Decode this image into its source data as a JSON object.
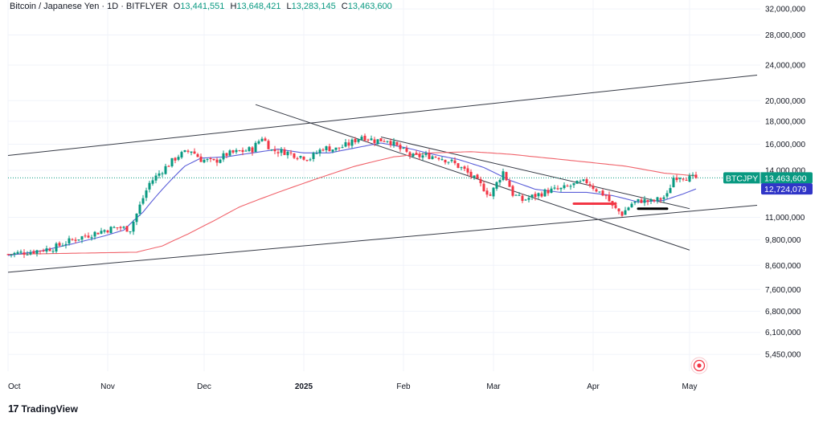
{
  "header": {
    "symbol": "Bitcoin / Japanese Yen · 1D · BITFLYER",
    "o_label": "O",
    "o_value": "13,441,551",
    "h_label": "H",
    "h_value": "13,648,421",
    "l_label": "L",
    "l_value": "13,283,145",
    "c_label": "C",
    "c_value": "13,463,600"
  },
  "brand": {
    "logo": "17",
    "name": "TradingView"
  },
  "colors": {
    "up": "#089981",
    "down": "#f23645",
    "ma_fast": "#5b5fd9",
    "ma_slow": "#f0636b",
    "line": "#363a45",
    "grid": "#f0f3fa",
    "badge_price": "#089981",
    "badge_ma": "#3035c7"
  },
  "chart_data": {
    "type": "candlestick",
    "title": "Bitcoin / Japanese Yen · 1D · BITFLYER",
    "x_labels": [
      {
        "label": "Oct",
        "index": 0,
        "bold": false
      },
      {
        "label": "Nov",
        "index": 31,
        "bold": false
      },
      {
        "label": "Dec",
        "index": 61,
        "bold": false
      },
      {
        "label": "2025",
        "index": 92,
        "bold": true
      },
      {
        "label": "Feb",
        "index": 123,
        "bold": false
      },
      {
        "label": "Mar",
        "index": 151,
        "bold": false
      },
      {
        "label": "Apr",
        "index": 182,
        "bold": false
      },
      {
        "label": "May",
        "index": 212,
        "bold": false
      }
    ],
    "y_ticks": [
      "5,450,000",
      "6,100,000",
      "6,800,000",
      "7,600,000",
      "8,600,000",
      "9,800,000",
      "11,000,000",
      "14,000,000",
      "16,000,000",
      "18,000,000",
      "20,000,000",
      "24,000,000",
      "28,000,000",
      "32,000,000"
    ],
    "y_scale": "log",
    "y_range": [
      5000000,
      33500000
    ],
    "last_price_label": {
      "symbol": "BTCJPY",
      "value": "13,463,600",
      "price": 13463600
    },
    "ma_label": {
      "value": "12,724,079",
      "price": 12724079
    },
    "anchors": [
      [
        0,
        9100000
      ],
      [
        8,
        9250000
      ],
      [
        14,
        9400000
      ],
      [
        20,
        9800000
      ],
      [
        26,
        10100000
      ],
      [
        30,
        10300000
      ],
      [
        34,
        10450000
      ],
      [
        38,
        10350000
      ],
      [
        40,
        11200000
      ],
      [
        44,
        13100000
      ],
      [
        48,
        14000000
      ],
      [
        53,
        15100000
      ],
      [
        57,
        15500000
      ],
      [
        60,
        14800000
      ],
      [
        64,
        14600000
      ],
      [
        68,
        15200000
      ],
      [
        72,
        15400000
      ],
      [
        76,
        15600000
      ],
      [
        79,
        16600000
      ],
      [
        82,
        15500000
      ],
      [
        86,
        15400000
      ],
      [
        90,
        15100000
      ],
      [
        94,
        14900000
      ],
      [
        98,
        15700000
      ],
      [
        102,
        15600000
      ],
      [
        106,
        16000000
      ],
      [
        110,
        16700000
      ],
      [
        114,
        16300000
      ],
      [
        118,
        16400000
      ],
      [
        122,
        15600000
      ],
      [
        126,
        15000000
      ],
      [
        130,
        15100000
      ],
      [
        134,
        15000000
      ],
      [
        138,
        14600000
      ],
      [
        142,
        14000000
      ],
      [
        146,
        13200000
      ],
      [
        150,
        12300000
      ],
      [
        154,
        13900000
      ],
      [
        157,
        12400000
      ],
      [
        160,
        12000000
      ],
      [
        164,
        12300000
      ],
      [
        168,
        12600000
      ],
      [
        172,
        12700000
      ],
      [
        176,
        13000000
      ],
      [
        180,
        13200000
      ],
      [
        184,
        12500000
      ],
      [
        186,
        12300000
      ],
      [
        188,
        11600000
      ],
      [
        191,
        11200000
      ],
      [
        194,
        11800000
      ],
      [
        197,
        12000000
      ],
      [
        200,
        11900000
      ],
      [
        203,
        12100000
      ],
      [
        205,
        12300000
      ],
      [
        207,
        13500000
      ],
      [
        209,
        13600000
      ],
      [
        212,
        13450000
      ],
      [
        214,
        13463600
      ]
    ],
    "ma_fast_anchors": [
      [
        0,
        9050000
      ],
      [
        10,
        9250000
      ],
      [
        20,
        9600000
      ],
      [
        30,
        10000000
      ],
      [
        36,
        10300000
      ],
      [
        42,
        11300000
      ],
      [
        48,
        12700000
      ],
      [
        55,
        14300000
      ],
      [
        60,
        14900000
      ],
      [
        68,
        15000000
      ],
      [
        76,
        15300000
      ],
      [
        84,
        15600000
      ],
      [
        92,
        15300000
      ],
      [
        100,
        15300000
      ],
      [
        108,
        15700000
      ],
      [
        116,
        16100000
      ],
      [
        124,
        15700000
      ],
      [
        132,
        15200000
      ],
      [
        140,
        14800000
      ],
      [
        148,
        14200000
      ],
      [
        156,
        13300000
      ],
      [
        164,
        12700000
      ],
      [
        172,
        12500000
      ],
      [
        180,
        12500000
      ],
      [
        188,
        12300000
      ],
      [
        196,
        11900000
      ],
      [
        204,
        12000000
      ],
      [
        210,
        12400000
      ],
      [
        214,
        12724079
      ]
    ],
    "ma_slow_anchors": [
      [
        0,
        9100000
      ],
      [
        20,
        9150000
      ],
      [
        40,
        9200000
      ],
      [
        48,
        9500000
      ],
      [
        56,
        10100000
      ],
      [
        64,
        10800000
      ],
      [
        72,
        11600000
      ],
      [
        84,
        12500000
      ],
      [
        96,
        13400000
      ],
      [
        108,
        14300000
      ],
      [
        120,
        15000000
      ],
      [
        132,
        15300000
      ],
      [
        144,
        15400000
      ],
      [
        156,
        15200000
      ],
      [
        168,
        14900000
      ],
      [
        180,
        14600000
      ],
      [
        192,
        14300000
      ],
      [
        204,
        13800000
      ],
      [
        214,
        13600000
      ]
    ],
    "trendlines": [
      {
        "name": "upper-channel-line",
        "from": [
          0,
          15100000
        ],
        "to": [
          233,
          22800000
        ]
      },
      {
        "name": "lower-channel-line",
        "from": [
          0,
          8300000
        ],
        "to": [
          233,
          11700000
        ]
      },
      {
        "name": "descending-line-a",
        "from": [
          77,
          19600000
        ],
        "to": [
          212,
          9300000
        ]
      },
      {
        "name": "descending-line-b",
        "from": [
          116,
          16600000
        ],
        "to": [
          212,
          11500000
        ]
      }
    ],
    "markers": [
      {
        "name": "red-marker",
        "color": "#f23645",
        "from": [
          176,
          11800000
        ],
        "to": [
          189,
          11800000
        ]
      },
      {
        "name": "black-marker",
        "color": "#000000",
        "from": [
          196,
          11500000
        ],
        "to": [
          205,
          11500000
        ]
      }
    ]
  }
}
